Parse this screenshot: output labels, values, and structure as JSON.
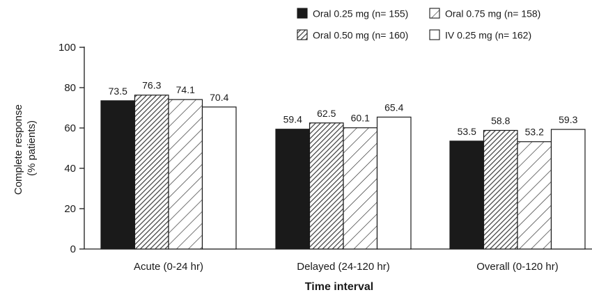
{
  "chart_data": {
    "type": "bar",
    "title": "",
    "xlabel": "Time interval",
    "ylabel_lines": [
      "Complete response",
      "(% patients)"
    ],
    "ylim": [
      0,
      100
    ],
    "yticks": [
      0,
      20,
      40,
      60,
      80,
      100
    ],
    "categories": [
      "Acute (0-24 hr)",
      "Delayed (24-120 hr)",
      "Overall (0-120 hr)"
    ],
    "series": [
      {
        "name": "Oral 0.25 mg (n= 155)",
        "pattern": "solid",
        "color": "#1a1a1a",
        "values": [
          73.5,
          59.4,
          53.5
        ]
      },
      {
        "name": "Oral 0.50 mg (n= 160)",
        "pattern": "dense-hatch",
        "color": "#555555",
        "values": [
          76.3,
          62.5,
          58.8
        ]
      },
      {
        "name": "Oral 0.75 mg (n= 158)",
        "pattern": "diagonal-hatch",
        "color": "#333333",
        "values": [
          74.1,
          60.1,
          53.2
        ]
      },
      {
        "name": "IV 0.25 mg (n= 162)",
        "pattern": "white",
        "color": "#ffffff",
        "values": [
          70.4,
          65.4,
          59.3
        ]
      }
    ],
    "value_labels": [
      [
        "73.5",
        "59.4",
        "53.5"
      ],
      [
        "76.3",
        "62.5",
        "58.8"
      ],
      [
        "74.1",
        "60.1",
        "53.2"
      ],
      [
        "70.4",
        "65.4",
        "59.3"
      ]
    ],
    "legend": {
      "placement": "top-right",
      "columns": 2,
      "order": [
        0,
        2,
        1,
        3
      ]
    },
    "grid": false
  }
}
